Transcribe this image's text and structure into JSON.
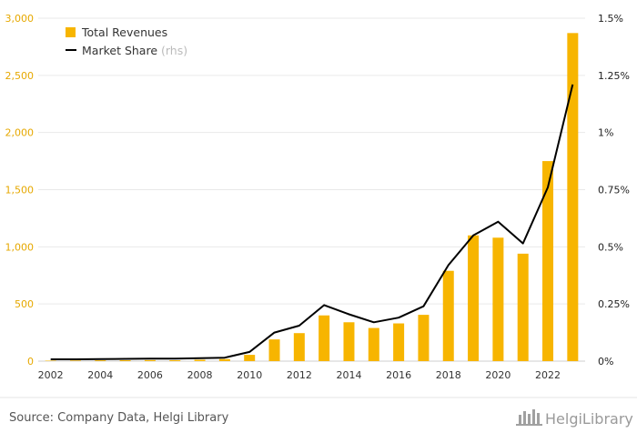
{
  "chart_data": {
    "type": "bar",
    "x": [
      2002,
      2003,
      2004,
      2005,
      2006,
      2007,
      2008,
      2009,
      2010,
      2011,
      2012,
      2013,
      2014,
      2015,
      2016,
      2017,
      2018,
      2019,
      2020,
      2021,
      2022,
      2023
    ],
    "series": [
      {
        "name": "Total Revenues",
        "type": "bar",
        "axis": "left",
        "color": "#f7b500",
        "values": [
          4,
          5,
          7,
          8,
          9,
          8,
          12,
          18,
          55,
          190,
          245,
          400,
          340,
          290,
          330,
          405,
          790,
          1100,
          1080,
          940,
          1750,
          2870
        ]
      },
      {
        "name": "Market Share",
        "name_note": "(rhs)",
        "type": "line",
        "axis": "right",
        "color": "#000000",
        "values": [
          0.008,
          0.008,
          0.009,
          0.01,
          0.011,
          0.011,
          0.013,
          0.015,
          0.04,
          0.125,
          0.155,
          0.245,
          0.205,
          0.17,
          0.19,
          0.24,
          0.42,
          0.55,
          0.61,
          0.515,
          0.76,
          1.21
        ]
      }
    ],
    "y_left": {
      "min": 0,
      "max": 3000,
      "ticks": [
        0,
        500,
        1000,
        1500,
        2000,
        2500,
        3000
      ],
      "tick_labels": [
        "0",
        "500",
        "1,000",
        "1,500",
        "2,000",
        "2,500",
        "3,000"
      ]
    },
    "y_right": {
      "min": 0,
      "max": 1.5,
      "ticks": [
        0,
        0.25,
        0.5,
        0.75,
        1,
        1.25,
        1.5
      ],
      "tick_labels": [
        "0%",
        "0.25%",
        "0.5%",
        "0.75%",
        "1%",
        "1.25%",
        "1.5%"
      ]
    },
    "x_tick_labels": [
      "2002",
      "2004",
      "2006",
      "2008",
      "2010",
      "2012",
      "2014",
      "2016",
      "2018",
      "2020",
      "2022"
    ],
    "grid": true,
    "legend_position": "top-left"
  },
  "source": "Source: Company Data, Helgi Library",
  "logo": {
    "text": "HelgiLibrary"
  }
}
